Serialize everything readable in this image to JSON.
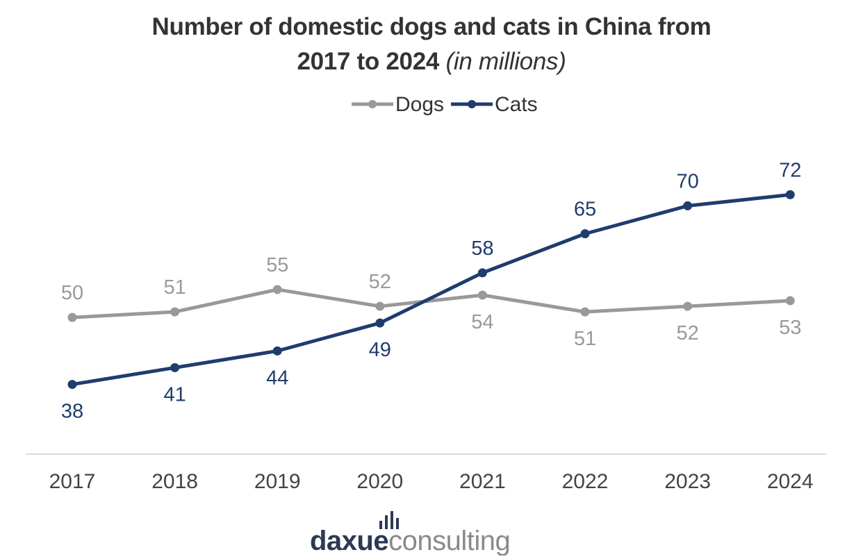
{
  "title": {
    "line1": "Number of domestic dogs and cats in China from",
    "line2_main": "2017 to 2024",
    "line2_unit": "(in millions)"
  },
  "chart_data": {
    "type": "line",
    "title": "Number of domestic dogs and cats in China from 2017 to 2024 (in millions)",
    "categories": [
      "2017",
      "2018",
      "2019",
      "2020",
      "2021",
      "2022",
      "2023",
      "2024"
    ],
    "series": [
      {
        "name": "Dogs",
        "color": "#999999",
        "values": [
          50,
          51,
          55,
          52,
          54,
          51,
          52,
          53
        ]
      },
      {
        "name": "Cats",
        "color": "#1f3c6e",
        "values": [
          38,
          41,
          44,
          49,
          58,
          65,
          70,
          72
        ]
      }
    ],
    "xlabel": "",
    "ylabel": "",
    "ylim": [
      26,
      82
    ],
    "grid": false,
    "legend": "top-center"
  },
  "logo": {
    "part1": "daxue",
    "part2": "consulting"
  },
  "colors": {
    "dogs": "#999999",
    "cats": "#1f3c6e",
    "axis": "#d9d9d9",
    "logo_dark": "#2b3a55",
    "logo_gray": "#8a8a8a"
  }
}
